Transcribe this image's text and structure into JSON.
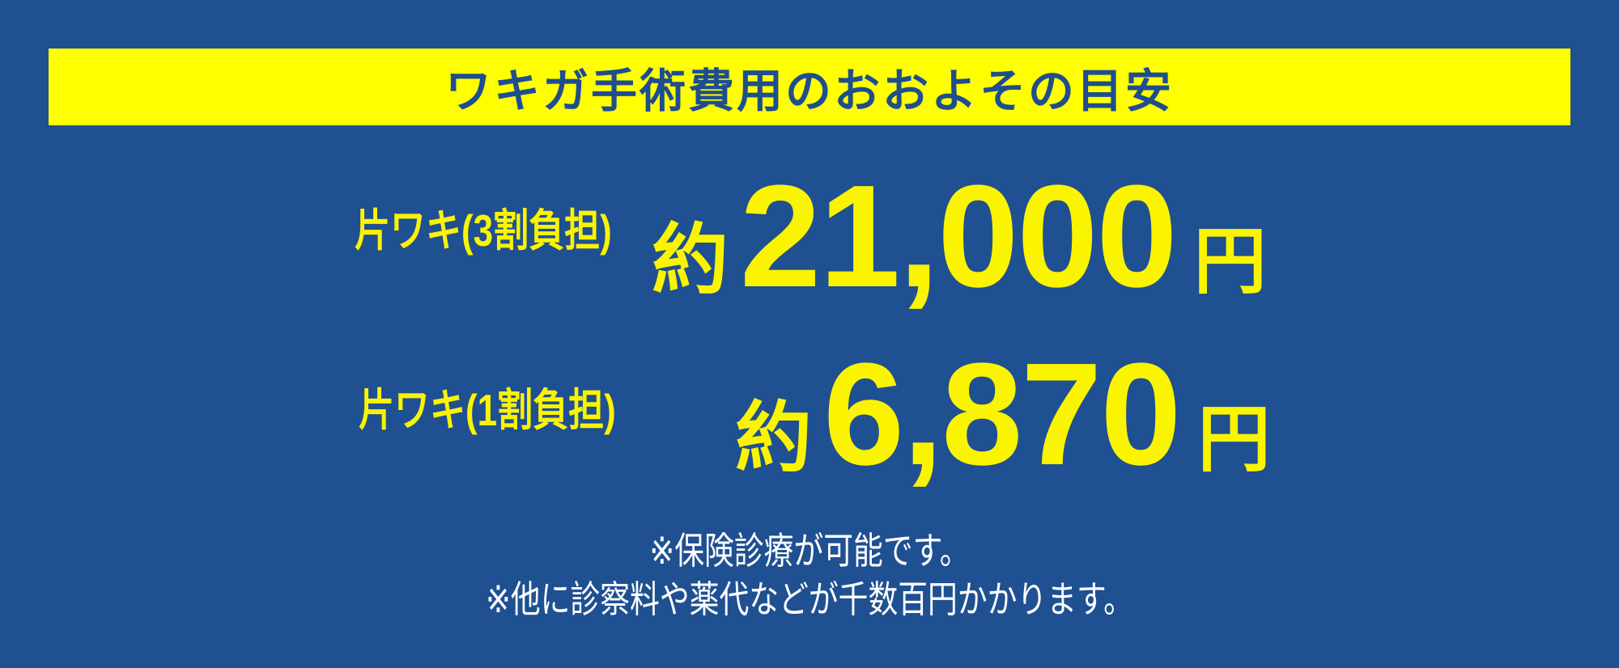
{
  "colors": {
    "background": "#1F5091",
    "banner_bg": "#FFFF00",
    "banner_text": "#1E4E8E",
    "highlight_text": "#FAF400",
    "footnote_text": "#FFFFFF"
  },
  "banner": {
    "title": "ワキガ手術費用のおおよその目安"
  },
  "rows": [
    {
      "label": "片ワキ(3割負担)",
      "prefix": "約",
      "amount": "21,000",
      "unit": "円"
    },
    {
      "label": "片ワキ(1割負担)",
      "prefix": "約",
      "amount": "6,870",
      "unit": "円"
    }
  ],
  "footnotes": [
    "※保険診療が可能です。",
    "※他に診察料や薬代などが千数百円かかります。"
  ]
}
